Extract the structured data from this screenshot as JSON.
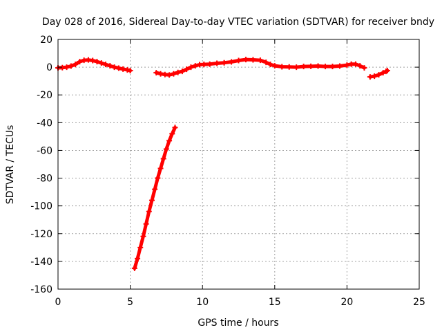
{
  "chart_data": {
    "type": "scatter",
    "title": "Day 028 of 2016, Sidereal Day-to-day VTEC variation (SDTVAR) for receiver bndy",
    "xlabel": "GPS time / hours",
    "ylabel": "SDTVAR / TECUs",
    "xlim": [
      0,
      25
    ],
    "ylim": [
      -160,
      20
    ],
    "xticks": [
      0,
      5,
      10,
      15,
      20,
      25
    ],
    "yticks": [
      20,
      0,
      -20,
      -40,
      -60,
      -80,
      -100,
      -120,
      -140,
      -160
    ],
    "grid": true,
    "legend": "none",
    "marker": "plus",
    "series_color": "#ff0000",
    "segments": [
      [
        [
          0.0,
          -0.5
        ],
        [
          0.3,
          -0.3
        ],
        [
          0.6,
          0.0
        ],
        [
          0.9,
          0.8
        ],
        [
          1.2,
          2.0
        ],
        [
          1.5,
          4.0
        ],
        [
          1.8,
          5.0
        ],
        [
          2.1,
          5.2
        ],
        [
          2.4,
          4.8
        ],
        [
          2.7,
          4.0
        ],
        [
          3.0,
          3.0
        ],
        [
          3.3,
          2.0
        ],
        [
          3.6,
          1.0
        ],
        [
          3.9,
          0.0
        ],
        [
          4.2,
          -0.7
        ],
        [
          4.5,
          -1.4
        ],
        [
          4.8,
          -2.0
        ],
        [
          5.0,
          -2.5
        ]
      ],
      [
        [
          5.3,
          -145.0
        ],
        [
          5.5,
          -138.0
        ],
        [
          5.7,
          -130.0
        ],
        [
          5.9,
          -122.0
        ],
        [
          6.1,
          -113.0
        ],
        [
          6.3,
          -104.0
        ],
        [
          6.5,
          -96.0
        ],
        [
          6.7,
          -88.0
        ],
        [
          6.9,
          -80.0
        ],
        [
          7.1,
          -73.0
        ],
        [
          7.3,
          -66.0
        ],
        [
          7.5,
          -59.0
        ],
        [
          7.7,
          -53.0
        ],
        [
          7.9,
          -48.0
        ],
        [
          8.1,
          -43.5
        ]
      ],
      [
        [
          6.8,
          -4.0
        ],
        [
          7.1,
          -4.8
        ],
        [
          7.4,
          -5.3
        ],
        [
          7.7,
          -5.6
        ],
        [
          8.0,
          -4.8
        ],
        [
          8.3,
          -3.8
        ],
        [
          8.6,
          -3.0
        ],
        [
          8.9,
          -1.5
        ],
        [
          9.2,
          0.0
        ],
        [
          9.5,
          1.0
        ],
        [
          9.8,
          1.8
        ],
        [
          10.1,
          2.0
        ],
        [
          10.5,
          2.2
        ],
        [
          11.0,
          2.8
        ],
        [
          11.5,
          3.2
        ],
        [
          12.0,
          3.8
        ],
        [
          12.5,
          4.8
        ],
        [
          13.0,
          5.5
        ],
        [
          13.5,
          5.3
        ],
        [
          14.0,
          5.0
        ],
        [
          14.4,
          3.5
        ],
        [
          14.7,
          2.0
        ],
        [
          15.0,
          1.0
        ],
        [
          15.5,
          0.3
        ],
        [
          16.0,
          0.2
        ],
        [
          16.5,
          0.0
        ],
        [
          17.0,
          0.5
        ],
        [
          17.5,
          0.6
        ],
        [
          18.0,
          0.8
        ],
        [
          18.5,
          0.5
        ],
        [
          19.0,
          0.5
        ],
        [
          19.5,
          0.8
        ],
        [
          20.0,
          1.5
        ],
        [
          20.3,
          2.2
        ],
        [
          20.6,
          2.2
        ],
        [
          20.9,
          1.0
        ],
        [
          21.2,
          -0.5
        ]
      ],
      [
        [
          21.6,
          -7.0
        ],
        [
          21.9,
          -6.5
        ],
        [
          22.2,
          -5.5
        ],
        [
          22.5,
          -4.0
        ],
        [
          22.7,
          -3.0
        ],
        [
          22.8,
          -2.5
        ]
      ]
    ]
  }
}
